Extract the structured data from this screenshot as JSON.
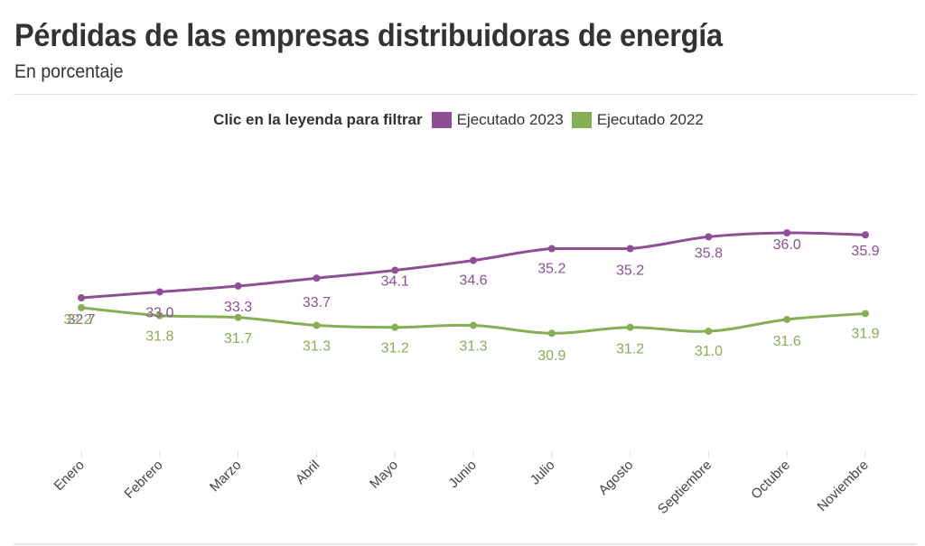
{
  "header": {
    "title": "Pérdidas de las empresas distribuidoras de energía",
    "subtitle": "En porcentaje"
  },
  "legend": {
    "title": "Clic en la leyenda para filtrar",
    "items": [
      {
        "label": "Ejecutado 2023",
        "color": "#8c4f94"
      },
      {
        "label": "Ejecutado 2022",
        "color": "#86ae55"
      }
    ]
  },
  "chart_data": {
    "type": "line",
    "title": "Pérdidas de las empresas distribuidoras de energía",
    "subtitle": "En porcentaje",
    "xlabel": "",
    "ylabel": "",
    "categories": [
      "Enero",
      "Febrero",
      "Marzo",
      "Abril",
      "Mayo",
      "Junio",
      "Julio",
      "Agosto",
      "Septiembre",
      "Octubre",
      "Noviembre"
    ],
    "series": [
      {
        "name": "Ejecutado 2023",
        "color": "#8c4f94",
        "values": [
          32.7,
          33.0,
          33.3,
          33.7,
          34.1,
          34.6,
          35.2,
          35.2,
          35.8,
          36.0,
          35.9
        ]
      },
      {
        "name": "Ejecutado 2022",
        "color": "#86ae55",
        "values": [
          32.2,
          31.8,
          31.7,
          31.3,
          31.2,
          31.3,
          30.9,
          31.2,
          31.0,
          31.6,
          31.9
        ]
      }
    ],
    "data_labels": true,
    "y_axis_visible": false,
    "grid": false,
    "legend_position": "top-center"
  }
}
